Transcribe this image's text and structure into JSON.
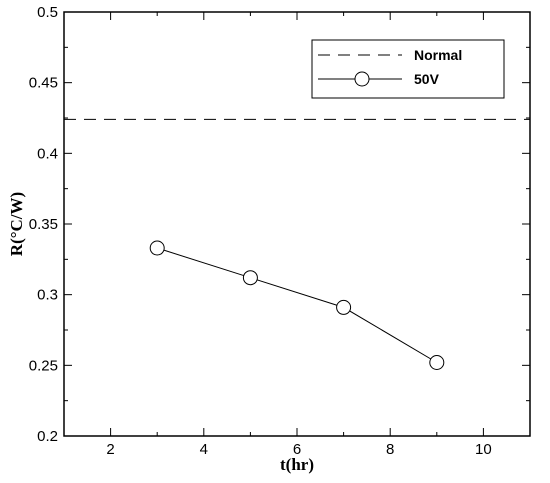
{
  "chart_data": {
    "type": "line",
    "xlabel": "t(hr)",
    "ylabel": "R(°C/W)",
    "xlim": [
      1,
      11
    ],
    "ylim": [
      0.2,
      0.5
    ],
    "xticks": [
      2,
      4,
      6,
      8,
      10
    ],
    "yticks": [
      0.2,
      0.25,
      0.3,
      0.35,
      0.4,
      0.45,
      0.5
    ],
    "xtick_labels": [
      "2",
      "4",
      "6",
      "8",
      "10"
    ],
    "ytick_labels": [
      "0.2",
      "0.25",
      "0.3",
      "0.35",
      "0.4",
      "0.45",
      "0.5"
    ],
    "grid": false,
    "legend_position": "top-right",
    "series": [
      {
        "name": "Normal",
        "style": "dashed",
        "color": "#000000",
        "marker": "none",
        "x": [
          1,
          11
        ],
        "y": [
          0.424,
          0.424
        ]
      },
      {
        "name": "50V",
        "style": "solid",
        "color": "#000000",
        "marker": "open-circle",
        "x": [
          3,
          5,
          7,
          9
        ],
        "y": [
          0.333,
          0.312,
          0.291,
          0.252
        ]
      }
    ]
  }
}
